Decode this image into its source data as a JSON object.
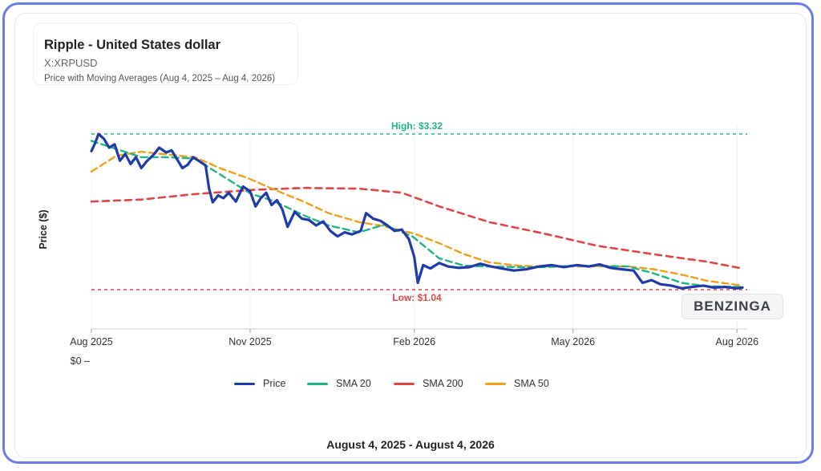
{
  "header": {
    "title": "Ripple - United States dollar",
    "symbol": "X:XRPUSD",
    "subtitle": "Price with Moving Averages (Aug 4, 2025 – Aug 4, 2026)"
  },
  "footer": {
    "date_range": "August 4, 2025 - August 4, 2026"
  },
  "watermark": "BENZINGA",
  "colors": {
    "price": "#1f3ba8",
    "sma20": "#1fb584",
    "sma200": "#e04545",
    "sma50": "#ef9f1a",
    "high": "#1fb584",
    "low": "#e04545",
    "frame": "#6b7be8"
  },
  "legend": [
    {
      "label": "Price",
      "color": "#1f3ba8",
      "dashed": false
    },
    {
      "label": "SMA 20",
      "color": "#1fb584",
      "dashed": true
    },
    {
      "label": "SMA 200",
      "color": "#e04545",
      "dashed": true
    },
    {
      "label": "SMA 50",
      "color": "#ef9f1a",
      "dashed": true
    }
  ],
  "chart_data": {
    "type": "line",
    "title": "Ripple - United States dollar",
    "subtitle": "Price with Moving Averages (Aug 4, 2025 – Aug 4, 2026)",
    "xlabel": "",
    "ylabel": "Price ($)",
    "x_ticks": [
      "Aug 2025",
      "Nov 2025",
      "Feb 2026",
      "May 2026",
      "Aug 2026"
    ],
    "y_ticks": [
      "$0"
    ],
    "x_range": [
      "2025-08-04",
      "2026-08-04"
    ],
    "ylim": [
      0,
      3.5
    ],
    "grid": true,
    "legend_position": "bottom",
    "reference_lines": [
      {
        "label": "High: $3.32",
        "value": 3.32,
        "color": "#1fb584"
      },
      {
        "label": "Low: $1.04",
        "value": 1.04,
        "color": "#e04545"
      }
    ],
    "series": [
      {
        "name": "Price",
        "color": "#1f3ba8",
        "points": [
          [
            "2025-08-04",
            3.07
          ],
          [
            "2025-08-06",
            3.18
          ],
          [
            "2025-08-08",
            3.32
          ],
          [
            "2025-08-11",
            3.25
          ],
          [
            "2025-08-14",
            3.12
          ],
          [
            "2025-08-17",
            3.17
          ],
          [
            "2025-08-20",
            2.93
          ],
          [
            "2025-08-23",
            3.03
          ],
          [
            "2025-08-26",
            2.88
          ],
          [
            "2025-08-29",
            2.98
          ],
          [
            "2025-09-01",
            2.82
          ],
          [
            "2025-09-04",
            2.92
          ],
          [
            "2025-09-08",
            3.02
          ],
          [
            "2025-09-11",
            3.12
          ],
          [
            "2025-09-15",
            3.05
          ],
          [
            "2025-09-18",
            3.08
          ],
          [
            "2025-09-21",
            2.95
          ],
          [
            "2025-09-24",
            2.82
          ],
          [
            "2025-09-27",
            2.87
          ],
          [
            "2025-09-30",
            2.98
          ],
          [
            "2025-10-03",
            2.93
          ],
          [
            "2025-10-07",
            2.86
          ],
          [
            "2025-10-09",
            2.52
          ],
          [
            "2025-10-11",
            2.32
          ],
          [
            "2025-10-14",
            2.42
          ],
          [
            "2025-10-17",
            2.38
          ],
          [
            "2025-10-20",
            2.46
          ],
          [
            "2025-10-24",
            2.33
          ],
          [
            "2025-10-28",
            2.55
          ],
          [
            "2025-11-01",
            2.48
          ],
          [
            "2025-11-04",
            2.26
          ],
          [
            "2025-11-07",
            2.38
          ],
          [
            "2025-11-10",
            2.46
          ],
          [
            "2025-11-13",
            2.28
          ],
          [
            "2025-11-16",
            2.35
          ],
          [
            "2025-11-19",
            2.22
          ],
          [
            "2025-11-22",
            1.96
          ],
          [
            "2025-11-26",
            2.18
          ],
          [
            "2025-11-30",
            2.08
          ],
          [
            "2025-12-04",
            2.06
          ],
          [
            "2025-12-08",
            1.98
          ],
          [
            "2025-12-12",
            2.04
          ],
          [
            "2025-12-16",
            1.9
          ],
          [
            "2025-12-20",
            1.82
          ],
          [
            "2025-12-24",
            1.88
          ],
          [
            "2025-12-28",
            1.85
          ],
          [
            "2026-01-02",
            1.9
          ],
          [
            "2026-01-05",
            2.16
          ],
          [
            "2026-01-09",
            2.08
          ],
          [
            "2026-01-13",
            2.05
          ],
          [
            "2026-01-17",
            1.98
          ],
          [
            "2026-01-21",
            1.9
          ],
          [
            "2026-01-25",
            1.92
          ],
          [
            "2026-01-29",
            1.78
          ],
          [
            "2026-02-01",
            1.52
          ],
          [
            "2026-02-03",
            1.14
          ],
          [
            "2026-02-06",
            1.4
          ],
          [
            "2026-02-10",
            1.35
          ],
          [
            "2026-02-15",
            1.43
          ],
          [
            "2026-02-20",
            1.38
          ],
          [
            "2026-02-26",
            1.36
          ],
          [
            "2026-03-04",
            1.37
          ],
          [
            "2026-03-10",
            1.42
          ],
          [
            "2026-03-16",
            1.38
          ],
          [
            "2026-03-22",
            1.35
          ],
          [
            "2026-03-29",
            1.32
          ],
          [
            "2026-04-05",
            1.34
          ],
          [
            "2026-04-12",
            1.38
          ],
          [
            "2026-04-19",
            1.4
          ],
          [
            "2026-04-26",
            1.37
          ],
          [
            "2026-05-03",
            1.4
          ],
          [
            "2026-05-10",
            1.38
          ],
          [
            "2026-05-16",
            1.41
          ],
          [
            "2026-05-22",
            1.36
          ],
          [
            "2026-05-28",
            1.34
          ],
          [
            "2026-06-04",
            1.32
          ],
          [
            "2026-06-09",
            1.14
          ],
          [
            "2026-06-14",
            1.18
          ],
          [
            "2026-06-19",
            1.12
          ],
          [
            "2026-06-25",
            1.1
          ],
          [
            "2026-07-01",
            1.06
          ],
          [
            "2026-07-07",
            1.08
          ],
          [
            "2026-07-13",
            1.1
          ],
          [
            "2026-07-19",
            1.07
          ],
          [
            "2026-07-25",
            1.08
          ],
          [
            "2026-08-01",
            1.06
          ],
          [
            "2026-08-04",
            1.07
          ]
        ]
      },
      {
        "name": "SMA 20",
        "color": "#1fb584",
        "points": [
          [
            "2025-08-04",
            3.22
          ],
          [
            "2025-08-18",
            3.1
          ],
          [
            "2025-09-01",
            2.98
          ],
          [
            "2025-09-15",
            2.98
          ],
          [
            "2025-10-01",
            2.96
          ],
          [
            "2025-10-15",
            2.73
          ],
          [
            "2025-11-01",
            2.45
          ],
          [
            "2025-11-15",
            2.33
          ],
          [
            "2025-12-01",
            2.13
          ],
          [
            "2025-12-15",
            1.98
          ],
          [
            "2026-01-01",
            1.88
          ],
          [
            "2026-01-15",
            1.99
          ],
          [
            "2026-01-31",
            1.82
          ],
          [
            "2026-02-15",
            1.5
          ],
          [
            "2026-03-01",
            1.39
          ],
          [
            "2026-03-15",
            1.38
          ],
          [
            "2026-04-01",
            1.37
          ],
          [
            "2026-04-15",
            1.37
          ],
          [
            "2026-05-01",
            1.39
          ],
          [
            "2026-05-15",
            1.39
          ],
          [
            "2026-06-01",
            1.38
          ],
          [
            "2026-06-15",
            1.28
          ],
          [
            "2026-07-01",
            1.14
          ],
          [
            "2026-07-15",
            1.09
          ],
          [
            "2026-08-04",
            1.08
          ]
        ]
      },
      {
        "name": "SMA 50",
        "color": "#ef9f1a",
        "points": [
          [
            "2025-08-04",
            2.77
          ],
          [
            "2025-08-18",
            3.0
          ],
          [
            "2025-09-01",
            3.06
          ],
          [
            "2025-09-15",
            3.02
          ],
          [
            "2025-10-01",
            2.98
          ],
          [
            "2025-10-15",
            2.82
          ],
          [
            "2025-11-01",
            2.66
          ],
          [
            "2025-11-15",
            2.5
          ],
          [
            "2025-12-01",
            2.33
          ],
          [
            "2025-12-15",
            2.16
          ],
          [
            "2026-01-01",
            2.03
          ],
          [
            "2026-01-15",
            1.97
          ],
          [
            "2026-02-01",
            1.86
          ],
          [
            "2026-02-15",
            1.72
          ],
          [
            "2026-03-01",
            1.56
          ],
          [
            "2026-03-15",
            1.44
          ],
          [
            "2026-04-01",
            1.39
          ],
          [
            "2026-04-15",
            1.38
          ],
          [
            "2026-05-01",
            1.38
          ],
          [
            "2026-05-15",
            1.38
          ],
          [
            "2026-06-01",
            1.38
          ],
          [
            "2026-06-15",
            1.34
          ],
          [
            "2026-07-01",
            1.26
          ],
          [
            "2026-07-15",
            1.17
          ],
          [
            "2026-08-04",
            1.1
          ]
        ]
      },
      {
        "name": "SMA 200",
        "color": "#e04545",
        "points": [
          [
            "2025-08-04",
            2.33
          ],
          [
            "2025-09-01",
            2.36
          ],
          [
            "2025-10-01",
            2.44
          ],
          [
            "2025-11-01",
            2.5
          ],
          [
            "2025-12-01",
            2.53
          ],
          [
            "2026-01-01",
            2.52
          ],
          [
            "2026-01-25",
            2.46
          ],
          [
            "2026-02-15",
            2.26
          ],
          [
            "2026-03-15",
            2.03
          ],
          [
            "2026-04-15",
            1.86
          ],
          [
            "2026-05-15",
            1.68
          ],
          [
            "2026-06-15",
            1.56
          ],
          [
            "2026-07-15",
            1.45
          ],
          [
            "2026-08-04",
            1.35
          ]
        ]
      }
    ]
  }
}
